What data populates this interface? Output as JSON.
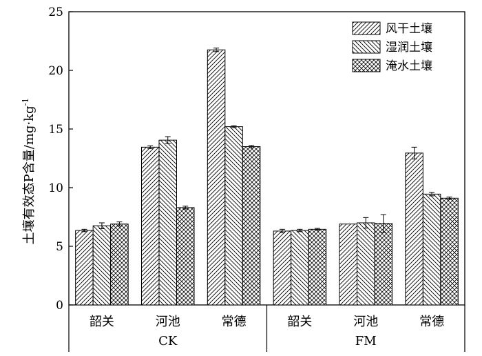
{
  "chart_data": {
    "type": "bar",
    "title": "",
    "ylabel_main": "土壤有效态P含量/mg·kg",
    "ylabel_sup": "-1",
    "ylim": [
      0,
      25
    ],
    "yticks": [
      "0",
      "5",
      "10",
      "15",
      "20",
      "25"
    ],
    "grid": false,
    "legend_position": "top-right",
    "groups": [
      {
        "name": "CK",
        "categories": [
          "韶关",
          "河池",
          "常德"
        ]
      },
      {
        "name": "FM",
        "categories": [
          "韶关",
          "河池",
          "常德"
        ]
      }
    ],
    "series": [
      {
        "name": "风干土壤",
        "pattern": "diag-right",
        "values": [
          6.35,
          13.45,
          21.75,
          6.3,
          6.9,
          12.95
        ],
        "errors": [
          0.1,
          0.12,
          0.15,
          0.15,
          0.0,
          0.5
        ]
      },
      {
        "name": "湿润土壤",
        "pattern": "diag-left",
        "values": [
          6.75,
          14.05,
          15.2,
          6.35,
          7.0,
          9.45
        ],
        "errors": [
          0.25,
          0.3,
          0.08,
          0.1,
          0.45,
          0.15
        ]
      },
      {
        "name": "淹水土壤",
        "pattern": "cross",
        "values": [
          6.9,
          8.3,
          13.5,
          6.45,
          6.95,
          9.1
        ],
        "errors": [
          0.18,
          0.12,
          0.1,
          0.08,
          0.75,
          0.1
        ]
      }
    ]
  }
}
